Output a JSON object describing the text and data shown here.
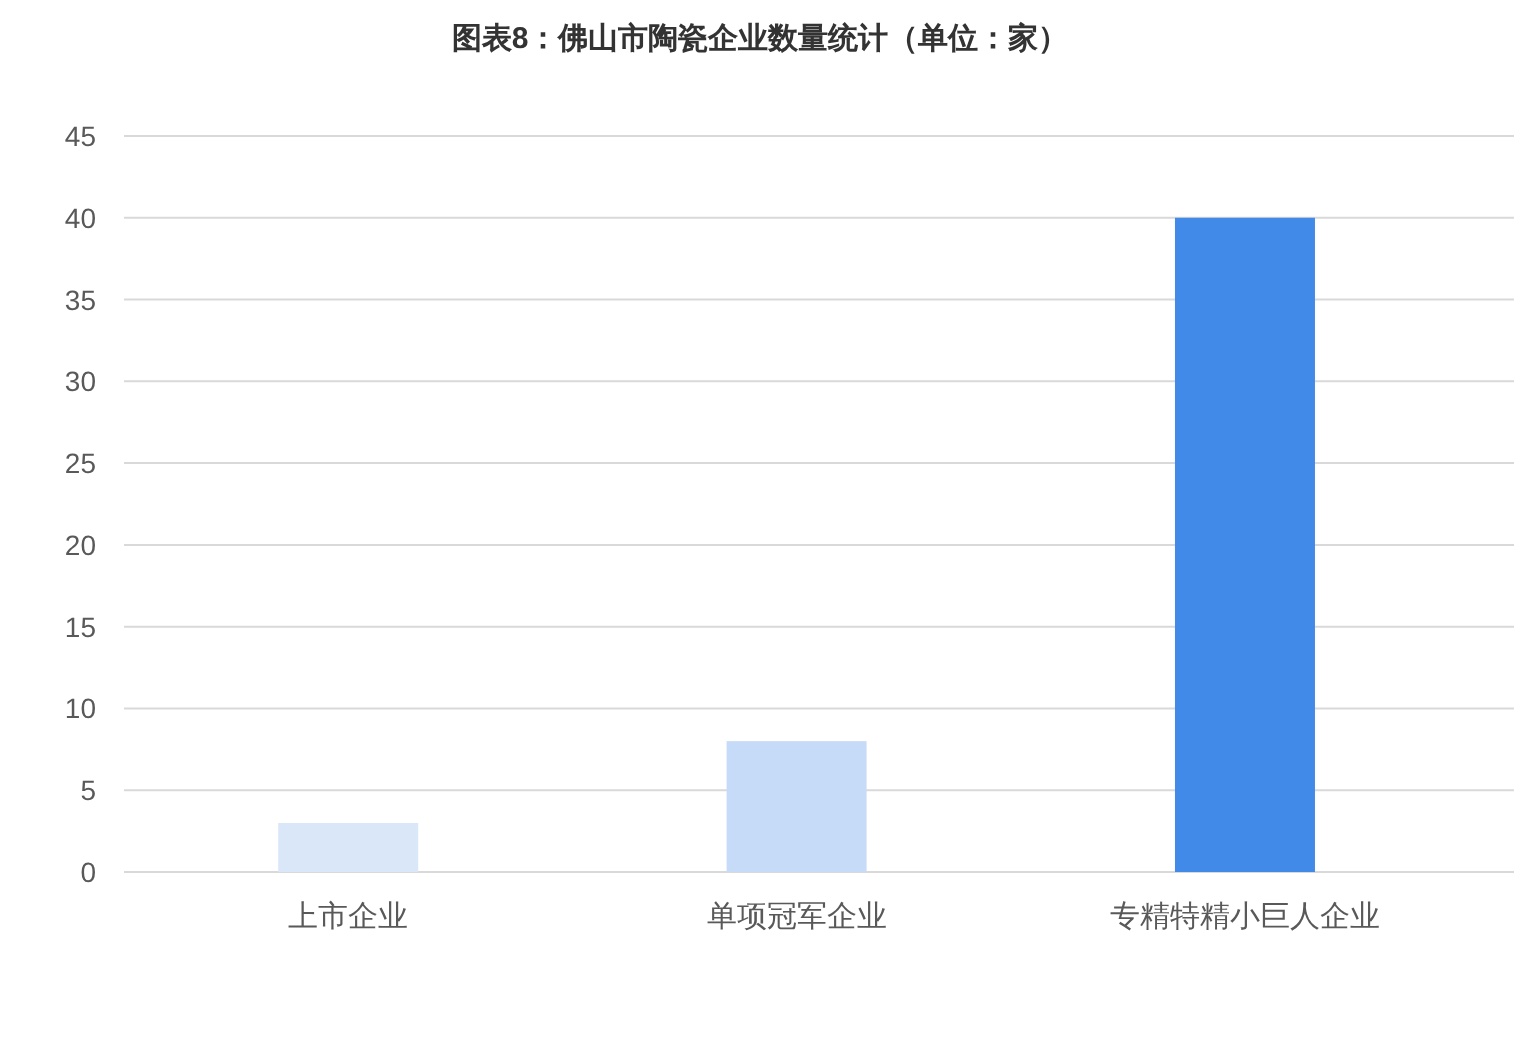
{
  "chart_data": {
    "type": "bar",
    "title": "图表8：佛山市陶瓷企业数量统计（单位：家）",
    "categories": [
      "上市企业",
      "单项冠军企业",
      "专精特精小巨人企业"
    ],
    "values": [
      3,
      8,
      40
    ],
    "colors": [
      "#dae7f8",
      "#c6dbf7",
      "#418ae8"
    ],
    "ylim": [
      0,
      45
    ],
    "yticks": [
      0,
      5,
      10,
      15,
      20,
      25,
      30,
      35,
      40,
      45
    ],
    "grid": "y"
  }
}
